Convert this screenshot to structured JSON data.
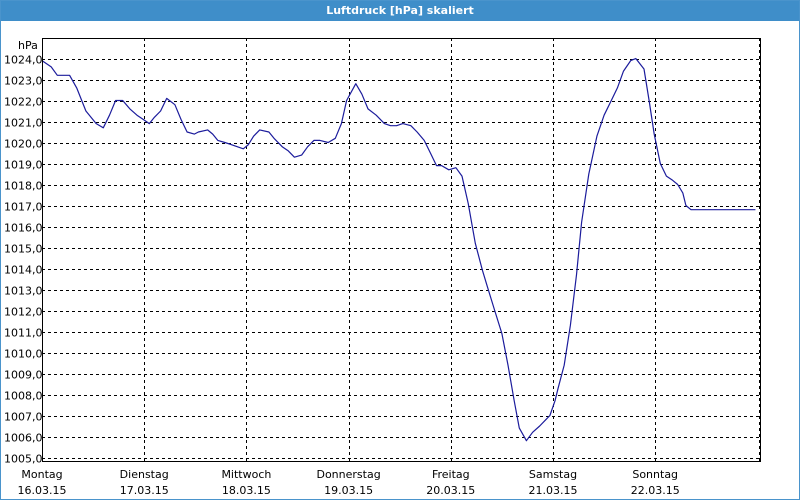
{
  "window": {
    "title": "Luftdruck [hPa] skaliert"
  },
  "chart_data": {
    "type": "line",
    "title": "Luftdruck [hPa] skaliert",
    "ylabel": "hPa",
    "ylim": [
      1005.0,
      1024.0
    ],
    "yticks": [
      1005.0,
      1006.0,
      1007.0,
      1008.0,
      1009.0,
      1010.0,
      1011.0,
      1012.0,
      1013.0,
      1014.0,
      1015.0,
      1016.0,
      1017.0,
      1018.0,
      1019.0,
      1020.0,
      1021.0,
      1022.0,
      1023.0,
      1024.0
    ],
    "ytick_labels": [
      "1005,0",
      "1006,0",
      "1007,0",
      "1008,0",
      "1009,0",
      "1010,0",
      "1011,0",
      "1012,0",
      "1013,0",
      "1014,0",
      "1015,0",
      "1016,0",
      "1017,0",
      "1018,0",
      "1019,0",
      "1020,0",
      "1021,0",
      "1022,0",
      "1023,0",
      "1024,0"
    ],
    "xlim": [
      0,
      7.0
    ],
    "xticks": [
      {
        "pos": 0,
        "day": "Montag",
        "date": "16.03.15"
      },
      {
        "pos": 1,
        "day": "Dienstag",
        "date": "17.03.15"
      },
      {
        "pos": 2,
        "day": "Mittwoch",
        "date": "18.03.15"
      },
      {
        "pos": 3,
        "day": "Donnerstag",
        "date": "19.03.15"
      },
      {
        "pos": 4,
        "day": "Freitag",
        "date": "20.03.15"
      },
      {
        "pos": 5,
        "day": "Samstag",
        "date": "21.03.15"
      },
      {
        "pos": 6,
        "day": "Sonntag",
        "date": "22.03.15"
      }
    ],
    "grid": true,
    "series": [
      {
        "color": "#1c1c9c",
        "x": [
          0.0,
          0.09,
          0.15,
          0.2,
          0.27,
          0.34,
          0.43,
          0.53,
          0.6,
          0.66,
          0.72,
          0.79,
          0.86,
          0.93,
          0.99,
          1.05,
          1.1,
          1.16,
          1.22,
          1.3,
          1.36,
          1.42,
          1.49,
          1.53,
          1.62,
          1.67,
          1.72,
          1.79,
          1.85,
          1.91,
          1.97,
          2.02,
          2.07,
          2.13,
          2.22,
          2.27,
          2.35,
          2.41,
          2.47,
          2.54,
          2.6,
          2.66,
          2.72,
          2.8,
          2.87,
          2.93,
          2.98,
          3.07,
          3.13,
          3.19,
          3.27,
          3.35,
          3.41,
          3.47,
          3.53,
          3.61,
          3.67,
          3.74,
          3.8,
          3.86,
          3.91,
          3.98,
          4.05,
          4.11,
          4.17,
          4.24,
          4.31,
          4.36,
          4.43,
          4.5,
          4.56,
          4.62,
          4.67,
          4.74,
          4.8,
          4.87,
          4.93,
          4.97,
          5.02,
          5.05,
          5.11,
          5.17,
          5.23,
          5.28,
          5.35,
          5.43,
          5.5,
          5.57,
          5.63,
          5.69,
          5.76,
          5.81,
          5.89,
          5.94,
          5.99,
          6.05,
          6.11,
          6.17,
          6.22,
          6.27,
          6.3,
          6.35,
          6.41,
          6.47,
          6.53,
          6.61,
          6.67,
          6.72,
          6.78,
          6.84,
          6.88,
          6.94,
          6.98
        ],
        "values": [
          1023.9,
          1023.6,
          1023.2,
          1023.2,
          1023.2,
          1022.6,
          1021.5,
          1020.9,
          1020.7,
          1021.3,
          1022.0,
          1022.0,
          1021.6,
          1021.3,
          1021.1,
          1020.9,
          1021.2,
          1021.5,
          1022.1,
          1021.8,
          1021.1,
          1020.5,
          1020.4,
          1020.5,
          1020.6,
          1020.4,
          1020.1,
          1020.0,
          1019.9,
          1019.8,
          1019.7,
          1019.9,
          1020.3,
          1020.6,
          1020.5,
          1020.2,
          1019.8,
          1019.6,
          1019.3,
          1019.4,
          1019.8,
          1020.1,
          1020.1,
          1020.0,
          1020.2,
          1020.9,
          1022.0,
          1022.8,
          1022.3,
          1021.6,
          1021.3,
          1020.9,
          1020.8,
          1020.8,
          1020.9,
          1020.8,
          1020.5,
          1020.1,
          1019.5,
          1018.9,
          1018.9,
          1018.7,
          1018.8,
          1018.4,
          1017.1,
          1015.2,
          1013.9,
          1013.1,
          1012.0,
          1010.9,
          1009.4,
          1007.7,
          1006.4,
          1005.8,
          1006.2,
          1006.5,
          1006.8,
          1007.0,
          1007.7,
          1008.3,
          1009.4,
          1011.3,
          1013.7,
          1016.2,
          1018.5,
          1020.3,
          1021.3,
          1022.0,
          1022.6,
          1023.4,
          1023.9,
          1024.0,
          1023.5,
          1022.0,
          1020.4,
          1019.0,
          1018.4,
          1018.2,
          1018.0,
          1017.6,
          1017.0,
          1016.8,
          1016.8,
          1016.8,
          1016.8,
          1016.8,
          1016.8,
          1016.8,
          1016.8,
          1016.8,
          1016.8,
          1016.8,
          1016.8
        ]
      }
    ]
  }
}
